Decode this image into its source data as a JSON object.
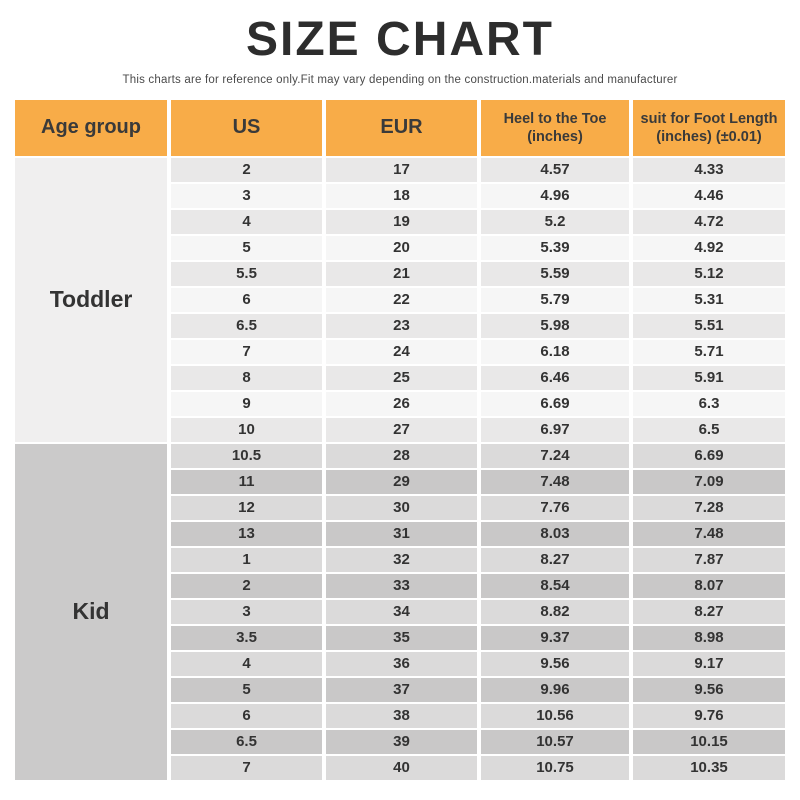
{
  "title": "SIZE CHART",
  "subtitle": "This charts are for reference only.Fit may vary depending on the construction.materials and manufacturer",
  "colors": {
    "title_color": "#2d2d2d",
    "header_bg": "#F8AC48",
    "header_text": "#3a3a3a",
    "body_text": "#333333",
    "group_styles": [
      {
        "cell_bg": "#F0EFEF",
        "row_alt": [
          "#E9E8E8",
          "#F6F6F6"
        ]
      },
      {
        "cell_bg": "#CBCACA",
        "row_alt": [
          "#DBDADA",
          "#C9C8C8"
        ]
      }
    ]
  },
  "table": {
    "columns": [
      {
        "id": "age-group",
        "lines": [
          "Age group"
        ],
        "style": "big"
      },
      {
        "id": "us",
        "lines": [
          "US"
        ],
        "style": "big"
      },
      {
        "id": "eur",
        "lines": [
          "EUR"
        ],
        "style": "big"
      },
      {
        "id": "heel-to-the-toe",
        "lines": [
          "Heel to the Toe",
          "(inches)"
        ],
        "style": "small"
      },
      {
        "id": "foot-length",
        "lines": [
          "suit for Foot Length",
          "(inches) (±0.01)"
        ],
        "style": "small"
      }
    ]
  },
  "chart_data": {
    "type": "table",
    "title": "SIZE CHART",
    "subtitle": "This charts are for reference only.Fit may vary depending on the construction.materials and manufacturer",
    "columns": [
      "Age group",
      "US",
      "EUR",
      "Heel to the Toe (inches)",
      "suit for Foot Length (inches) (±0.01)"
    ],
    "groups": [
      {
        "age_group": "Toddler",
        "rows": [
          [
            "2",
            "17",
            "4.57",
            "4.33"
          ],
          [
            "3",
            "18",
            "4.96",
            "4.46"
          ],
          [
            "4",
            "19",
            "5.2",
            "4.72"
          ],
          [
            "5",
            "20",
            "5.39",
            "4.92"
          ],
          [
            "5.5",
            "21",
            "5.59",
            "5.12"
          ],
          [
            "6",
            "22",
            "5.79",
            "5.31"
          ],
          [
            "6.5",
            "23",
            "5.98",
            "5.51"
          ],
          [
            "7",
            "24",
            "6.18",
            "5.71"
          ],
          [
            "8",
            "25",
            "6.46",
            "5.91"
          ],
          [
            "9",
            "26",
            "6.69",
            "6.3"
          ],
          [
            "10",
            "27",
            "6.97",
            "6.5"
          ]
        ]
      },
      {
        "age_group": "Kid",
        "rows": [
          [
            "10.5",
            "28",
            "7.24",
            "6.69"
          ],
          [
            "11",
            "29",
            "7.48",
            "7.09"
          ],
          [
            "12",
            "30",
            "7.76",
            "7.28"
          ],
          [
            "13",
            "31",
            "8.03",
            "7.48"
          ],
          [
            "1",
            "32",
            "8.27",
            "7.87"
          ],
          [
            "2",
            "33",
            "8.54",
            "8.07"
          ],
          [
            "3",
            "34",
            "8.82",
            "8.27"
          ],
          [
            "3.5",
            "35",
            "9.37",
            "8.98"
          ],
          [
            "4",
            "36",
            "9.56",
            "9.17"
          ],
          [
            "5",
            "37",
            "9.96",
            "9.56"
          ],
          [
            "6",
            "38",
            "10.56",
            "9.76"
          ],
          [
            "6.5",
            "39",
            "10.57",
            "10.15"
          ],
          [
            "7",
            "40",
            "10.75",
            "10.35"
          ]
        ]
      }
    ]
  }
}
